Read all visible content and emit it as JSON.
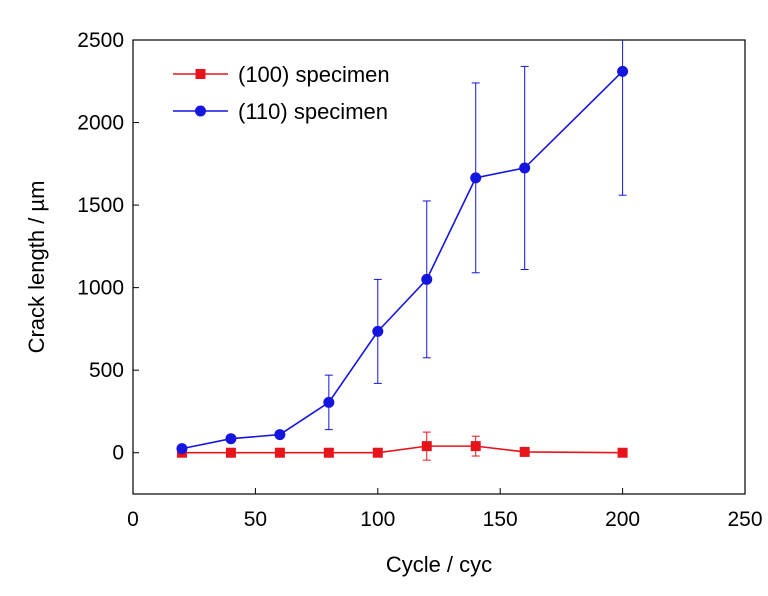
{
  "chart_data": {
    "type": "line",
    "xlabel": "Cycle / cyc",
    "ylabel": "Crack length / µm",
    "xlim": [
      0,
      250
    ],
    "ylim": [
      -250,
      2500
    ],
    "xticks": [
      0,
      50,
      100,
      150,
      200,
      250
    ],
    "yticks": [
      0,
      500,
      1000,
      1500,
      2000,
      2500
    ],
    "grid": false,
    "legend_position": "top-left",
    "series": [
      {
        "name": "(100) specimen",
        "color": "#e8141b",
        "marker": "square",
        "x": [
          20,
          40,
          60,
          80,
          100,
          120,
          140,
          160,
          200
        ],
        "y": [
          0,
          0,
          0,
          0,
          0,
          40,
          40,
          5,
          0
        ],
        "error": [
          null,
          null,
          null,
          null,
          null,
          85,
          60,
          null,
          null
        ]
      },
      {
        "name": "(110) specimen",
        "color": "#1515e0",
        "marker": "circle",
        "x": [
          20,
          40,
          60,
          80,
          100,
          120,
          140,
          160,
          200
        ],
        "y": [
          25,
          85,
          110,
          305,
          735,
          1050,
          1665,
          1725,
          2310
        ],
        "error": [
          null,
          null,
          null,
          165,
          315,
          475,
          575,
          615,
          750
        ]
      }
    ]
  }
}
